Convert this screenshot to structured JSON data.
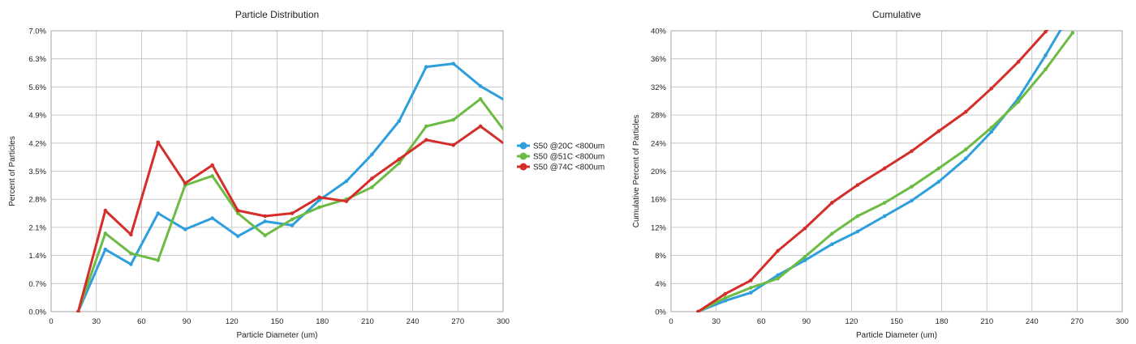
{
  "colors": {
    "blue": "#2e9fdc",
    "green": "#6cbb45",
    "red": "#d42e2b"
  },
  "chart_data": [
    {
      "type": "line",
      "title": "Particle Distribution",
      "xlabel": "Particle Diameter (um)",
      "ylabel": "Percent of Particles",
      "xlim": [
        0,
        300
      ],
      "ylim": [
        0,
        7.0
      ],
      "xticks": [
        "0",
        "30",
        "60",
        "90",
        "120",
        "150",
        "180",
        "210",
        "240",
        "270",
        "300"
      ],
      "xtick_values": [
        0,
        30,
        60,
        90,
        120,
        150,
        180,
        210,
        240,
        270,
        300
      ],
      "yticks": [
        "0.0%",
        "0.7%",
        "1.4%",
        "2.1%",
        "2.8%",
        "3.5%",
        "4.2%",
        "4.9%",
        "5.6%",
        "6.3%",
        "7.0%"
      ],
      "ytick_values": [
        0,
        0.7,
        1.4,
        2.1,
        2.8,
        3.5,
        4.2,
        4.9,
        5.6,
        6.3,
        7.0
      ],
      "grid": true,
      "legend_position": "right",
      "x": [
        18,
        36,
        53,
        71,
        89,
        107,
        124,
        142,
        160,
        178,
        196,
        213,
        231,
        249,
        267,
        285,
        302
      ],
      "series": [
        {
          "name": "S50 @20C <800um",
          "color": "#2e9fdc",
          "values": [
            0.0,
            1.55,
            1.18,
            2.45,
            2.05,
            2.33,
            1.88,
            2.25,
            2.15,
            2.78,
            3.25,
            3.92,
            4.75,
            6.1,
            6.18,
            5.62,
            5.25
          ]
        },
        {
          "name": "S50 @51C <800um",
          "color": "#6cbb45",
          "values": [
            0.0,
            1.95,
            1.45,
            1.28,
            3.15,
            3.38,
            2.45,
            1.9,
            2.3,
            2.6,
            2.8,
            3.1,
            3.7,
            4.62,
            4.78,
            5.3,
            4.45
          ]
        },
        {
          "name": "S50 @74C <800um",
          "color": "#d42e2b",
          "values": [
            0.0,
            2.52,
            1.92,
            4.22,
            3.2,
            3.65,
            2.52,
            2.38,
            2.45,
            2.85,
            2.75,
            3.32,
            3.8,
            4.28,
            4.15,
            4.62,
            4.15
          ]
        }
      ]
    },
    {
      "type": "line",
      "title": "Cumulative",
      "xlabel": "Particle Diameter (um)",
      "ylabel": "Cumulative Percent of Particles",
      "xlim": [
        0,
        300
      ],
      "ylim": [
        0,
        40
      ],
      "xticks": [
        "0",
        "30",
        "60",
        "90",
        "120",
        "150",
        "180",
        "210",
        "240",
        "270",
        "300"
      ],
      "xtick_values": [
        0,
        30,
        60,
        90,
        120,
        150,
        180,
        210,
        240,
        270,
        300
      ],
      "yticks": [
        "0%",
        "4%",
        "8%",
        "12%",
        "16%",
        "20%",
        "24%",
        "28%",
        "32%",
        "36%",
        "40%"
      ],
      "ytick_values": [
        0,
        4,
        8,
        12,
        16,
        20,
        24,
        28,
        32,
        36,
        40
      ],
      "grid": true,
      "x": [
        18,
        36,
        53,
        71,
        89,
        107,
        124,
        142,
        160,
        178,
        196,
        213,
        231,
        249,
        267
      ],
      "series": [
        {
          "color": "#2e9fdc",
          "values": [
            0.0,
            1.55,
            2.7,
            5.2,
            7.3,
            9.6,
            11.4,
            13.6,
            15.8,
            18.5,
            21.8,
            25.6,
            30.4,
            36.5,
            43.0
          ]
        },
        {
          "color": "#6cbb45",
          "values": [
            0.0,
            1.95,
            3.4,
            4.7,
            7.8,
            11.1,
            13.6,
            15.5,
            17.8,
            20.4,
            23.1,
            26.2,
            29.9,
            34.5,
            39.7
          ]
        },
        {
          "color": "#d42e2b",
          "values": [
            0.0,
            2.52,
            4.44,
            8.66,
            11.86,
            15.51,
            18.03,
            20.41,
            22.86,
            25.71,
            28.46,
            31.78,
            35.58,
            39.86,
            44.0
          ]
        }
      ]
    }
  ]
}
